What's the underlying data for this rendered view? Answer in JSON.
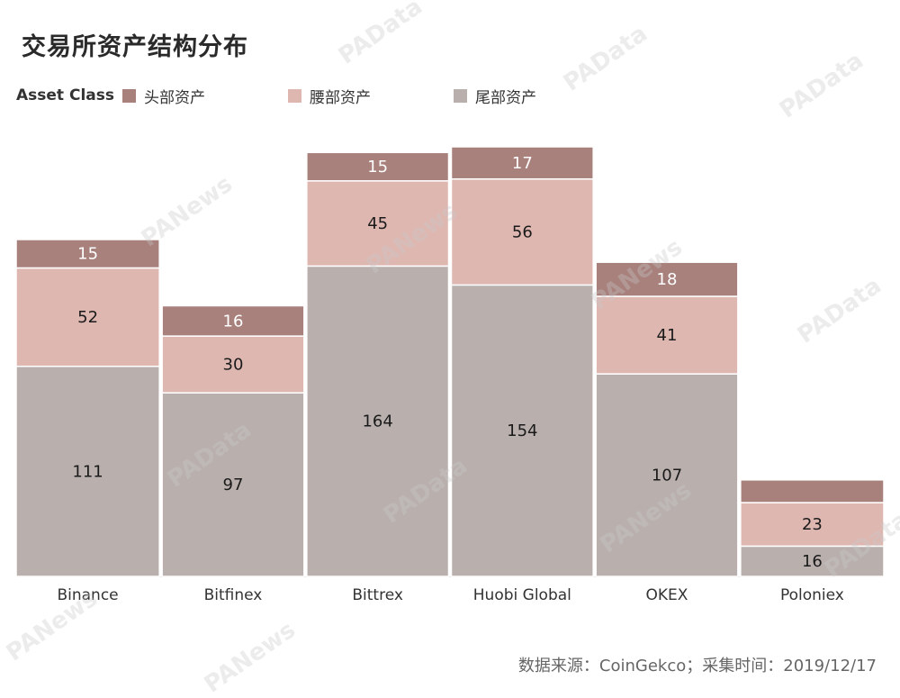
{
  "title": "交易所资产结构分布",
  "legend": {
    "title": "Asset Class",
    "items": [
      {
        "label": "头部资产",
        "color": "#a8807c"
      },
      {
        "label": "腰部资产",
        "color": "#deb7b1"
      },
      {
        "label": "尾部资产",
        "color": "#b9b0ae"
      }
    ]
  },
  "source": "数据来源：CoinGekco；采集时间：2019/12/17",
  "watermarks": [
    "PAData",
    "PANews"
  ],
  "chart_data": {
    "type": "bar",
    "stacked": true,
    "categories": [
      "Binance",
      "Bitfinex",
      "Bittrex",
      "Huobi Global",
      "OKEX",
      "Poloniex"
    ],
    "series": [
      {
        "name": "尾部资产",
        "color": "#b9b0ae",
        "values": [
          111,
          97,
          164,
          154,
          107,
          16
        ]
      },
      {
        "name": "腰部资产",
        "color": "#deb7b1",
        "values": [
          52,
          30,
          45,
          56,
          41,
          23
        ]
      },
      {
        "name": "头部资产",
        "color": "#a8807c",
        "values": [
          15,
          16,
          15,
          17,
          18,
          12
        ]
      }
    ],
    "value_labels": [
      [
        "111",
        "97",
        "164",
        "154",
        "107",
        "16"
      ],
      [
        "52",
        "30",
        "45",
        "56",
        "41",
        "23"
      ],
      [
        "15",
        "16",
        "15",
        "17",
        "18",
        ""
      ]
    ],
    "ylim": [
      0,
      227
    ],
    "grid": false,
    "legend_position": "top-left"
  }
}
